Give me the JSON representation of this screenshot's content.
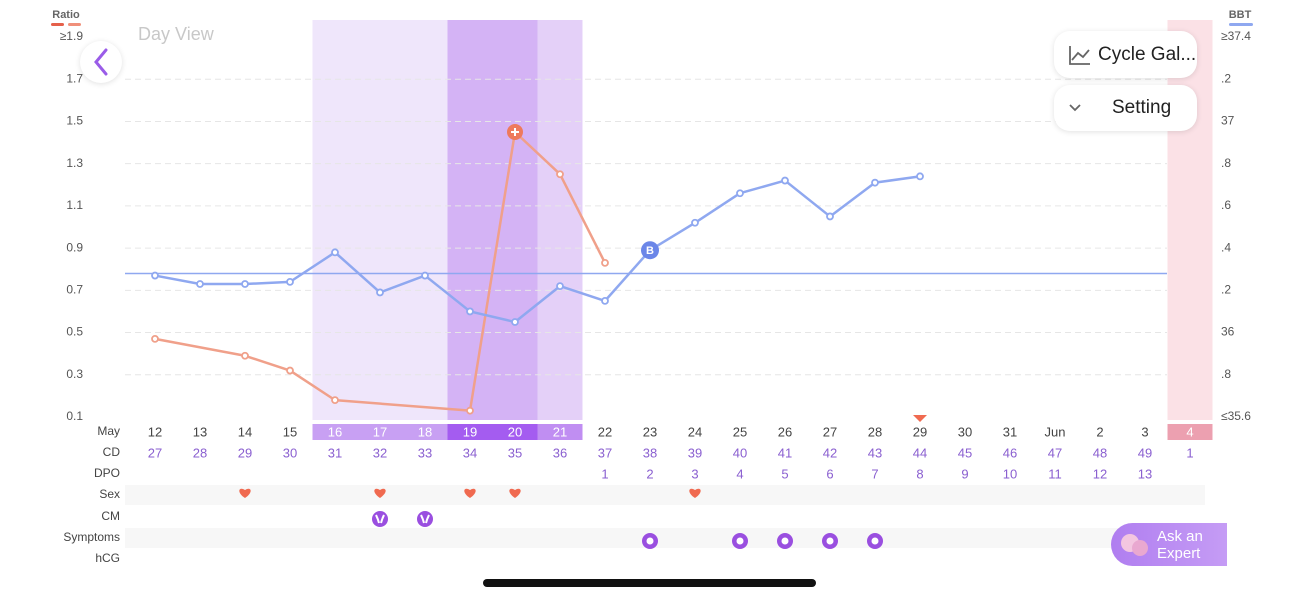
{
  "view_label": "Day View",
  "buttons": {
    "cycle": "Cycle Gal...",
    "setting": "Setting",
    "ask": "Ask an Expert"
  },
  "chart": {
    "left_axis": {
      "title": "Ratio",
      "color": "#f0907a",
      "lim": [
        0.1,
        1.9
      ],
      "ticks": [
        {
          "value": 1.9,
          "label": "≥1.9"
        },
        1.7,
        1.5,
        1.3,
        1.1,
        0.9,
        0.7,
        0.5,
        0.3,
        0.1
      ]
    },
    "right_axis": {
      "title": "BBT",
      "color": "#8fa8f0",
      "lim": [
        35.6,
        37.4
      ],
      "ticks": [
        {
          "value": 37.4,
          "label": "≥37.4"
        },
        {
          "value": 37.2,
          "label": ".2"
        },
        37,
        {
          "value": 36.8,
          "label": ".8"
        },
        {
          "value": 36.6,
          "label": ".6"
        },
        {
          "value": 36.4,
          "label": ".4"
        },
        {
          "value": 36.2,
          "label": ".2"
        },
        36,
        {
          "value": 35.8,
          "label": ".8"
        },
        {
          "value": 35.6,
          "label": "≤35.6"
        }
      ]
    },
    "grid": true,
    "dates": [
      "12",
      "13",
      "14",
      "15",
      "16",
      "17",
      "18",
      "19",
      "20",
      "21",
      "22",
      "23",
      "24",
      "25",
      "26",
      "27",
      "28",
      "29",
      "30",
      "31",
      "Jun",
      "2",
      "3",
      "4"
    ],
    "phase": [
      null,
      null,
      null,
      null,
      "fertile",
      "fertile",
      "fertile",
      "peak",
      "peak",
      "high",
      null,
      null,
      null,
      null,
      null,
      null,
      null,
      null,
      null,
      null,
      null,
      null,
      null,
      "period"
    ],
    "today": "29",
    "ratio": {
      "color": "#f0a08a",
      "peak_at": "20",
      "values": [
        0.47,
        null,
        0.39,
        0.32,
        0.18,
        null,
        null,
        0.13,
        1.45,
        1.25,
        0.83,
        null,
        null,
        null,
        null,
        null,
        null,
        null,
        null,
        null,
        null,
        null,
        null,
        null
      ]
    },
    "bbt": {
      "color": "#8fa8f0",
      "coverline": 36.28,
      "marker": {
        "label": "B",
        "at": "23"
      },
      "values": [
        36.27,
        36.23,
        36.23,
        36.24,
        36.38,
        36.19,
        36.27,
        36.1,
        36.05,
        36.22,
        36.15,
        36.39,
        36.52,
        36.66,
        36.72,
        36.55,
        36.71,
        36.74,
        null,
        null,
        null,
        null,
        null,
        null
      ]
    }
  },
  "rows": {
    "labels": [
      "May",
      "CD",
      "DPO",
      "Sex",
      "CM",
      "Symptoms",
      "hCG"
    ],
    "cd": [
      27,
      28,
      29,
      30,
      31,
      32,
      33,
      34,
      35,
      36,
      37,
      38,
      39,
      40,
      41,
      42,
      43,
      44,
      45,
      46,
      47,
      48,
      49,
      1
    ],
    "dpo": [
      null,
      null,
      null,
      null,
      null,
      null,
      null,
      null,
      null,
      null,
      1,
      2,
      3,
      4,
      5,
      6,
      7,
      8,
      9,
      10,
      11,
      12,
      13,
      null
    ],
    "sex": [
      false,
      false,
      true,
      false,
      false,
      true,
      false,
      true,
      true,
      false,
      false,
      false,
      true,
      false,
      false,
      false,
      false,
      false,
      false,
      false,
      false,
      false,
      false,
      false
    ],
    "cm": [
      false,
      false,
      false,
      false,
      false,
      true,
      true,
      false,
      false,
      false,
      false,
      false,
      false,
      false,
      false,
      false,
      false,
      false,
      false,
      false,
      false,
      false,
      false,
      false
    ],
    "symptoms": [
      false,
      false,
      false,
      false,
      false,
      false,
      false,
      false,
      false,
      false,
      false,
      true,
      false,
      true,
      true,
      true,
      true,
      false,
      false,
      false,
      false,
      false,
      false,
      false
    ]
  }
}
